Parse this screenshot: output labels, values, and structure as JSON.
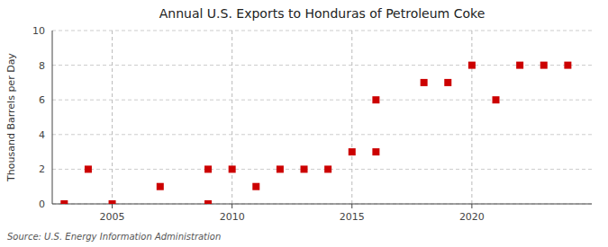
{
  "chart_data": {
    "type": "scatter",
    "title": "Annual U.S. Exports to Honduras of Petroleum Coke",
    "ylabel": "Thousand Barrels per Day",
    "annotations": [
      "Source: U.S. Energy Information Administration"
    ],
    "x": [
      2003,
      2004,
      2005,
      2007,
      2009,
      2009,
      2010,
      2011,
      2012,
      2013,
      2014,
      2015,
      2016,
      2016,
      2018,
      2019,
      2020,
      2021,
      2022,
      2023,
      2024
    ],
    "values": [
      0,
      2,
      0,
      1,
      0,
      2,
      2,
      1,
      2,
      2,
      2,
      3,
      3,
      6,
      7,
      7,
      8,
      6,
      8,
      8,
      8
    ],
    "xlim": [
      2002.5,
      2025
    ],
    "ylim": [
      0,
      10
    ],
    "xticks": [
      2005,
      2010,
      2015,
      2020
    ],
    "yticks": [
      0,
      2,
      4,
      6,
      8,
      10
    ],
    "color": "#cc0000",
    "marker": "square",
    "grid": true
  }
}
